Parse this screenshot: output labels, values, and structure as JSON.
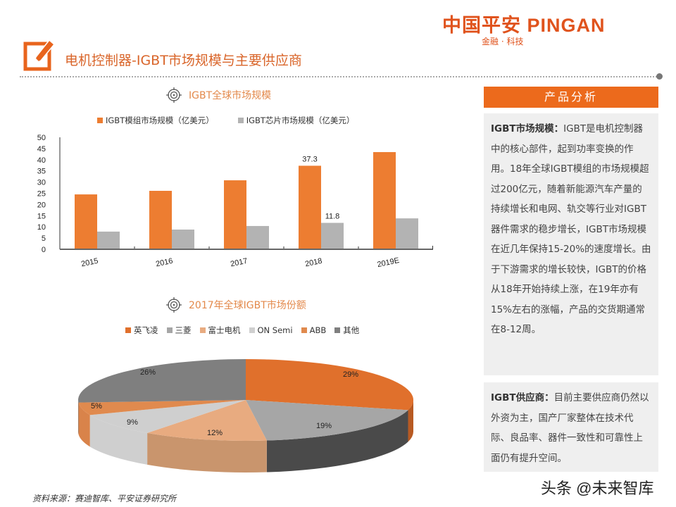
{
  "header": {
    "logo_main": "中国平安 PINGAN",
    "logo_sub": "金融 · 科技",
    "title": "电机控制器-IGBT市场规模与主要供应商"
  },
  "colors": {
    "accent": "#ec6a1c",
    "bar_module": "#ed7d31",
    "bar_chip": "#b3b3b3",
    "title_text": "#d9652a"
  },
  "bar_section": {
    "title": "IGBT全球市场规模",
    "legend": [
      "IGBT模组市场规模（亿美元）",
      "IGBT芯片市场规模（亿美元）"
    ]
  },
  "pie_section": {
    "title": "2017年全球IGBT市场份额",
    "legend": [
      "英飞凌",
      "三菱",
      "富士电机",
      "ON Semi",
      "ABB",
      "其他"
    ]
  },
  "chart_data": [
    {
      "type": "bar",
      "title": "IGBT全球市场规模",
      "categories": [
        "2015",
        "2016",
        "2017",
        "2018",
        "2019E"
      ],
      "series": [
        {
          "name": "IGBT模组市场规模（亿美元）",
          "color": "#ed7d31",
          "values": [
            24.5,
            26.1,
            30.8,
            37.3,
            43.4
          ]
        },
        {
          "name": "IGBT芯片市场规模（亿美元）",
          "color": "#b3b3b3",
          "values": [
            7.9,
            8.8,
            10.4,
            11.8,
            13.8
          ]
        }
      ],
      "data_labels": [
        {
          "category": "2018",
          "series": 0,
          "text": "37.3"
        },
        {
          "category": "2018",
          "series": 1,
          "text": "11.8"
        }
      ],
      "yticks": [
        0,
        5,
        10,
        15,
        20,
        25,
        30,
        35,
        40,
        45,
        50
      ],
      "ylim": [
        0,
        50
      ],
      "xlabel": "",
      "ylabel": "",
      "grid": false,
      "legend_position": "top"
    },
    {
      "type": "pie",
      "title": "2017年全球IGBT市场份额",
      "style": "3d",
      "labels": [
        "英飞凌",
        "三菱",
        "富士电机",
        "ON Semi",
        "ABB",
        "其他"
      ],
      "values": [
        29,
        19,
        12,
        9,
        5,
        26
      ],
      "value_labels": [
        "29%",
        "19%",
        "12%",
        "9%",
        "5%",
        "26%"
      ],
      "colors": [
        "#e0702c",
        "#a6a6a6",
        "#e8ab80",
        "#cfcfcf",
        "#e08a4e",
        "#7f7f7f"
      ],
      "legend_position": "top"
    }
  ],
  "panel": {
    "header": "产品分析",
    "box1": {
      "bold": "IGBT市场规模：",
      "text": "IGBT是电机控制器中的核心部件，起到功率变换的作用。18年全球IGBT模组的市场规模超过200亿元，随着新能源汽车产量的持续增长和电网、轨交等行业对IGBT器件需求的稳步增长，IGBT市场规模在近几年保持15-20%的速度增长。由于下游需求的增长较快，IGBT的价格从18年开始持续上涨，在19年亦有15%左右的涨幅，产品的交货期通常在8-12周。"
    },
    "box2": {
      "bold": "IGBT供应商：",
      "text": "目前主要供应商仍然以外资为主，国产厂家整体在技术代际、良品率、器件一致性和可靠性上面仍有提升空间。"
    }
  },
  "footer": {
    "source": "资料来源：赛迪智库、平安证券研究所",
    "watermark": "头条 @未来智库"
  }
}
